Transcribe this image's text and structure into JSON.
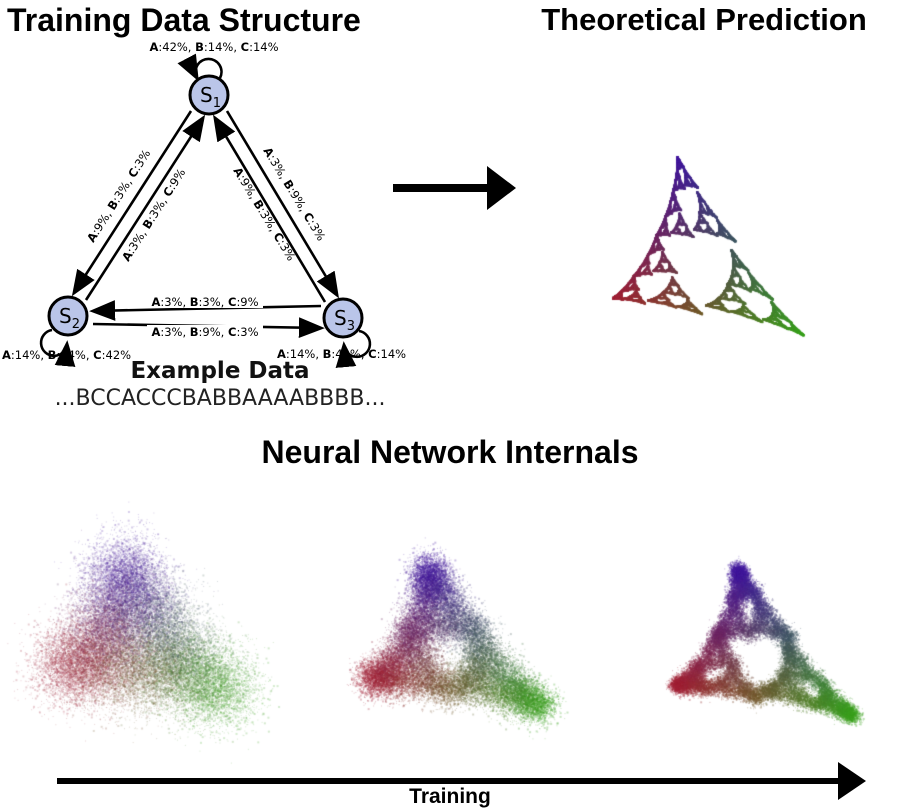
{
  "figure": {
    "left_title": "Training Data Structure",
    "right_title": "Theoretical Prediction",
    "bottom_title": "Neural Network Internals",
    "training_axis_label": "Training",
    "example_heading": "Example Data",
    "example_sequence": "...BCCACCCBABBAAAABBBB..."
  },
  "markov": {
    "states": [
      {
        "name": "S",
        "sub": "1"
      },
      {
        "name": "S",
        "sub": "2"
      },
      {
        "name": "S",
        "sub": "3"
      }
    ],
    "node_fill": "#bac5e9",
    "symbols": [
      "A",
      "B",
      "C"
    ],
    "edge_labels": {
      "s1_self": "A:42%, B:14%, C:14%",
      "s2_self": "A:14%, B:14%, C:42%",
      "s3_self": "A:14%, B:42%, C:14%",
      "s1_to_s2": "A:9%, B:3%, C:3%",
      "s2_to_s1": "A:3%, B:3%, C:9%",
      "s1_to_s3": "A:3%, B:9%, C:3%",
      "s3_to_s1": "A:9%, B:3%, C:3%",
      "s3_to_s2": "A:3%, B:3%, C:9%",
      "s2_to_s3": "A:3%, B:9%, C:3%"
    },
    "transition_percent": {
      "S1": {
        "S1": [
          42,
          14,
          14
        ],
        "S2": [
          9,
          3,
          3
        ],
        "S3": [
          3,
          9,
          3
        ]
      },
      "S2": {
        "S1": [
          3,
          3,
          9
        ],
        "S2": [
          14,
          14,
          42
        ],
        "S3": [
          3,
          9,
          3
        ]
      },
      "S3": {
        "S1": [
          9,
          3,
          3
        ],
        "S2": [
          3,
          3,
          9
        ],
        "S3": [
          14,
          42,
          14
        ]
      }
    }
  },
  "simplex": {
    "corner_states": {
      "top": "S1",
      "bottom_left": "S2",
      "bottom_right": "S3"
    },
    "corner_colors": {
      "top": "#1502e2",
      "bottom_left": "#de1506",
      "bottom_right": "#2cc40a"
    }
  }
}
